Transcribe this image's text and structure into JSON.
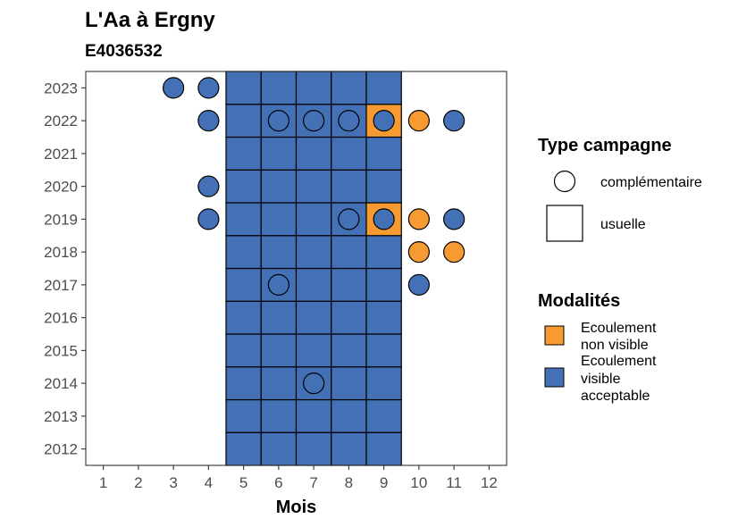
{
  "chart_data": {
    "type": "tile",
    "title": "L'Aa à Ergny",
    "subtitle": "E4036532",
    "xlabel": "Mois",
    "ylabel": "",
    "x_ticks": [
      1,
      2,
      3,
      4,
      5,
      6,
      7,
      8,
      9,
      10,
      11,
      12
    ],
    "y_ticks": [
      2012,
      2013,
      2014,
      2015,
      2016,
      2017,
      2018,
      2019,
      2020,
      2021,
      2022,
      2023
    ],
    "xlim": [
      0.5,
      12.5
    ],
    "ylim": [
      2011.5,
      2023.5
    ],
    "legend_position": "right",
    "colors": {
      "Ecoulement non visible": "#f79a31",
      "Ecoulement visible acceptable": "#4471b5"
    },
    "legend_type": {
      "title": "Type campagne",
      "items": [
        {
          "label": "complémentaire",
          "shape": "circle"
        },
        {
          "label": "usuelle",
          "shape": "square"
        }
      ]
    },
    "legend_modalites": {
      "title": "Modalités",
      "items": [
        {
          "label_lines": [
            "Ecoulement",
            "non visible"
          ],
          "color": "#f79a31"
        },
        {
          "label_lines": [
            "Ecoulement",
            "visible",
            "acceptable"
          ],
          "color": "#4471b5"
        }
      ]
    },
    "usuelle": [
      {
        "year": 2012,
        "months": [
          5,
          6,
          7,
          8,
          9
        ],
        "non_visible": []
      },
      {
        "year": 2013,
        "months": [
          5,
          6,
          7,
          8,
          9
        ],
        "non_visible": []
      },
      {
        "year": 2014,
        "months": [
          5,
          6,
          7,
          8,
          9
        ],
        "non_visible": []
      },
      {
        "year": 2015,
        "months": [
          5,
          6,
          7,
          8,
          9
        ],
        "non_visible": []
      },
      {
        "year": 2016,
        "months": [
          5,
          6,
          7,
          8,
          9
        ],
        "non_visible": []
      },
      {
        "year": 2017,
        "months": [
          5,
          6,
          7,
          8,
          9
        ],
        "non_visible": []
      },
      {
        "year": 2018,
        "months": [
          5,
          6,
          7,
          8,
          9
        ],
        "non_visible": []
      },
      {
        "year": 2019,
        "months": [
          5,
          6,
          7,
          8,
          9
        ],
        "non_visible": [
          9
        ]
      },
      {
        "year": 2020,
        "months": [
          5,
          6,
          7,
          8,
          9
        ],
        "non_visible": []
      },
      {
        "year": 2021,
        "months": [
          5,
          6,
          7,
          8,
          9
        ],
        "non_visible": []
      },
      {
        "year": 2022,
        "months": [
          5,
          6,
          7,
          8,
          9
        ],
        "non_visible": [
          9
        ]
      },
      {
        "year": 2023,
        "months": [
          5,
          6,
          7,
          8,
          9
        ],
        "non_visible": []
      }
    ],
    "complementaire": [
      {
        "year": 2023,
        "month": 3,
        "modalite": "Ecoulement visible acceptable"
      },
      {
        "year": 2023,
        "month": 4,
        "modalite": "Ecoulement visible acceptable"
      },
      {
        "year": 2022,
        "month": 4,
        "modalite": "Ecoulement visible acceptable"
      },
      {
        "year": 2022,
        "month": 6,
        "modalite": "Ecoulement visible acceptable"
      },
      {
        "year": 2022,
        "month": 7,
        "modalite": "Ecoulement visible acceptable"
      },
      {
        "year": 2022,
        "month": 8,
        "modalite": "Ecoulement visible acceptable"
      },
      {
        "year": 2022,
        "month": 9,
        "modalite": "Ecoulement visible acceptable"
      },
      {
        "year": 2022,
        "month": 10,
        "modalite": "Ecoulement non visible"
      },
      {
        "year": 2022,
        "month": 11,
        "modalite": "Ecoulement visible acceptable"
      },
      {
        "year": 2020,
        "month": 4,
        "modalite": "Ecoulement visible acceptable"
      },
      {
        "year": 2019,
        "month": 4,
        "modalite": "Ecoulement visible acceptable"
      },
      {
        "year": 2019,
        "month": 8,
        "modalite": "Ecoulement visible acceptable"
      },
      {
        "year": 2019,
        "month": 9,
        "modalite": "Ecoulement visible acceptable"
      },
      {
        "year": 2019,
        "month": 10,
        "modalite": "Ecoulement non visible"
      },
      {
        "year": 2019,
        "month": 11,
        "modalite": "Ecoulement visible acceptable"
      },
      {
        "year": 2018,
        "month": 10,
        "modalite": "Ecoulement non visible"
      },
      {
        "year": 2018,
        "month": 11,
        "modalite": "Ecoulement non visible"
      },
      {
        "year": 2017,
        "month": 6,
        "modalite": "Ecoulement visible acceptable"
      },
      {
        "year": 2017,
        "month": 10,
        "modalite": "Ecoulement visible acceptable"
      },
      {
        "year": 2014,
        "month": 7,
        "modalite": "Ecoulement visible acceptable"
      }
    ]
  }
}
